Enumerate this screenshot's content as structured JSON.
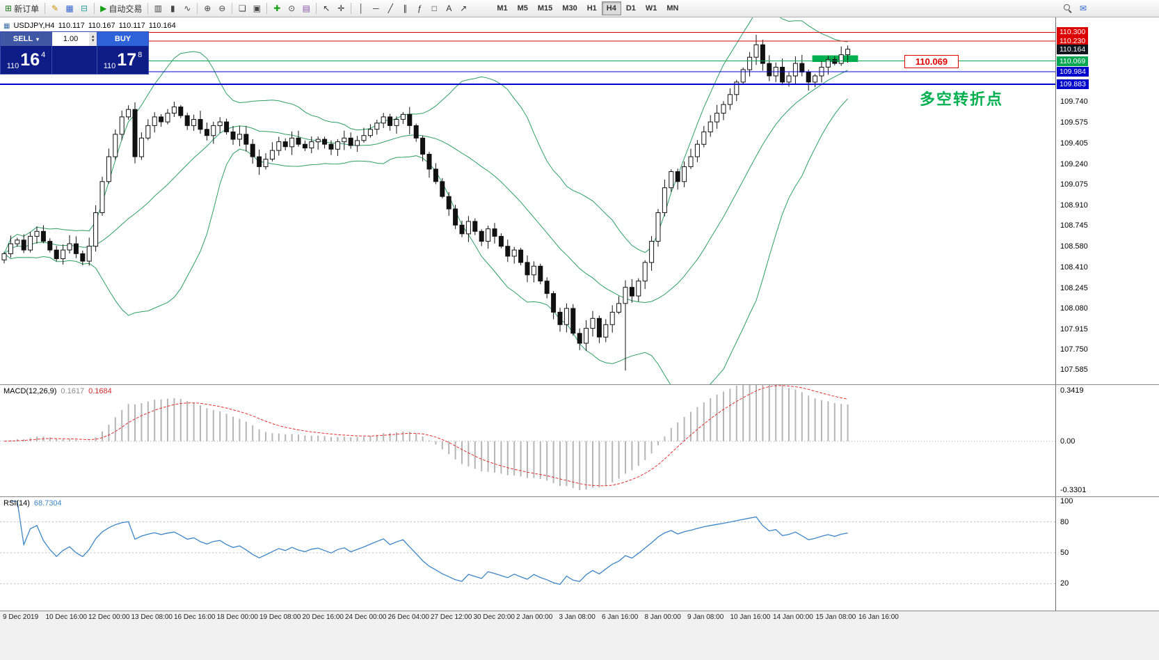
{
  "toolbar": {
    "groups": [
      {
        "items": [
          {
            "name": "new-order",
            "glyph": "⊞",
            "color": "#1f7a1f",
            "label": "新订单"
          }
        ]
      },
      {
        "items": [
          {
            "name": "metaeditor",
            "glyph": "✎",
            "color": "#c79100"
          },
          {
            "name": "market-watch",
            "glyph": "▦",
            "color": "#2f62cf"
          },
          {
            "name": "data-window",
            "glyph": "⊟",
            "color": "#2aa198"
          }
        ]
      },
      {
        "items": [
          {
            "name": "autotrading",
            "glyph": "▶",
            "color": "#18a018",
            "label": "自动交易"
          }
        ]
      },
      {
        "items": [
          {
            "name": "bar-chart",
            "glyph": "▥",
            "color": "#444444"
          },
          {
            "name": "candlestick-chart",
            "glyph": "▮",
            "color": "#444444"
          },
          {
            "name": "line-chart",
            "glyph": "∿",
            "color": "#444444"
          }
        ]
      },
      {
        "items": [
          {
            "name": "zoom-in",
            "glyph": "⊕",
            "color": "#444444"
          },
          {
            "name": "zoom-out",
            "glyph": "⊖",
            "color": "#444444"
          }
        ]
      },
      {
        "items": [
          {
            "name": "tile-windows",
            "glyph": "❏",
            "color": "#444444"
          },
          {
            "name": "cascade-windows",
            "glyph": "▣",
            "color": "#444444"
          }
        ]
      },
      {
        "items": [
          {
            "name": "add-indicator",
            "glyph": "✚",
            "color": "#18a018"
          },
          {
            "name": "periods",
            "glyph": "⊙",
            "color": "#444444"
          },
          {
            "name": "templates",
            "glyph": "▤",
            "color": "#8658a8"
          }
        ]
      },
      {
        "items": [
          {
            "name": "cursor",
            "glyph": "↖",
            "color": "#333333"
          },
          {
            "name": "crosshair",
            "glyph": "✛",
            "color": "#333333"
          }
        ]
      },
      {
        "items": [
          {
            "name": "vertical-line",
            "glyph": "│",
            "color": "#333333"
          },
          {
            "name": "horizontal-line",
            "glyph": "─",
            "color": "#333333"
          },
          {
            "name": "trendline",
            "glyph": "╱",
            "color": "#333333"
          },
          {
            "name": "equidistant-channel",
            "glyph": "∥",
            "color": "#333333"
          },
          {
            "name": "fibonacci",
            "glyph": "ƒ",
            "color": "#333333"
          },
          {
            "name": "shapes",
            "glyph": "□",
            "color": "#333333"
          },
          {
            "name": "text",
            "glyph": "A",
            "color": "#333333"
          },
          {
            "name": "arrow-tools",
            "glyph": "↗",
            "color": "#333333"
          }
        ]
      }
    ],
    "timeframes": [
      {
        "label": "M1"
      },
      {
        "label": "M5"
      },
      {
        "label": "M15"
      },
      {
        "label": "M30"
      },
      {
        "label": "H1"
      },
      {
        "label": "H4",
        "active": true
      },
      {
        "label": "D1"
      },
      {
        "label": "W1"
      },
      {
        "label": "MN"
      }
    ],
    "right_icons": [
      {
        "name": "search",
        "css": "magnifier"
      },
      {
        "name": "chat",
        "glyph": "✉",
        "color": "#2f62cf"
      }
    ]
  },
  "chart": {
    "symbol_info": {
      "symbol": "USDJPY,H4",
      "open": "110.117",
      "high": "110.167",
      "low": "110.117",
      "close": "110.164"
    },
    "trade_widget": {
      "sell_label": "SELL",
      "buy_label": "BUY",
      "lot": "1.00",
      "price_prefix": "110",
      "sell_big": "16",
      "sell_sup": "4",
      "buy_big": "17",
      "buy_sup": "8"
    },
    "annotations": {
      "turning_point": "多空转折点",
      "price_tag": "110.069"
    },
    "current_price_badge": "110.164"
  },
  "chart_data": {
    "type": "candlestick",
    "symbol": "USDJPY",
    "timeframe": "H4",
    "price_range": {
      "max": 110.42,
      "min": 107.47
    },
    "price_axis_ticks": [
      "109.740",
      "109.575",
      "109.405",
      "109.240",
      "109.075",
      "108.910",
      "108.745",
      "108.580",
      "108.410",
      "108.245",
      "108.080",
      "107.915",
      "107.750",
      "107.585"
    ],
    "closes": [
      108.52,
      108.6,
      108.63,
      108.55,
      108.66,
      108.7,
      108.62,
      108.55,
      108.48,
      108.55,
      108.6,
      108.52,
      108.46,
      108.58,
      108.85,
      109.1,
      109.3,
      109.48,
      109.62,
      109.68,
      109.3,
      109.45,
      109.55,
      109.62,
      109.58,
      109.65,
      109.7,
      109.63,
      109.55,
      109.6,
      109.52,
      109.47,
      109.55,
      109.58,
      109.5,
      109.44,
      109.48,
      109.4,
      109.3,
      109.22,
      109.28,
      109.35,
      109.42,
      109.38,
      109.45,
      109.4,
      109.37,
      109.42,
      109.44,
      109.4,
      109.36,
      109.42,
      109.45,
      109.39,
      109.43,
      109.47,
      109.52,
      109.57,
      109.62,
      109.55,
      109.6,
      109.64,
      109.55,
      109.45,
      109.32,
      109.2,
      109.1,
      108.98,
      108.88,
      108.75,
      108.68,
      108.78,
      108.7,
      108.62,
      108.72,
      108.66,
      108.58,
      108.5,
      108.55,
      108.45,
      108.35,
      108.42,
      108.3,
      108.2,
      108.05,
      107.95,
      108.08,
      107.88,
      107.8,
      107.92,
      108.0,
      107.85,
      107.95,
      108.05,
      108.12,
      108.25,
      108.18,
      108.3,
      108.45,
      108.62,
      108.85,
      109.05,
      109.18,
      109.1,
      109.22,
      109.3,
      109.4,
      109.5,
      109.58,
      109.65,
      109.72,
      109.8,
      109.9,
      110.0,
      110.1,
      110.2,
      110.05,
      109.95,
      110.02,
      109.9,
      109.95,
      110.05,
      109.98,
      109.9,
      109.95,
      110.02,
      110.08,
      110.05,
      110.12,
      110.164
    ],
    "candle_overrides": [
      {
        "index": 95,
        "low": 107.58
      },
      {
        "index": 115,
        "high": 110.28
      }
    ],
    "hlines": [
      {
        "price": 110.3,
        "label": "110.300",
        "color": "#dd0000",
        "width": 1
      },
      {
        "price": 110.23,
        "label": "110.230",
        "color": "#dd0000",
        "width": 1
      },
      {
        "price": 110.069,
        "label": "110.069",
        "color": "#00a651",
        "width": 1
      },
      {
        "price": 109.984,
        "label": "109.984",
        "color": "#0000cc",
        "width": 1
      },
      {
        "price": 109.883,
        "label": "109.883",
        "color": "#0000cc",
        "width": 2
      }
    ],
    "highlight_rect": {
      "x_start_index": 124,
      "x_end_index": 131,
      "price_top": 110.115,
      "price_bottom": 110.062,
      "color": "#00b050"
    },
    "bollinger": {
      "period": 20,
      "deviation": 2,
      "color": "#2e9e63"
    },
    "macd": {
      "name": "MACD(12,26,9)",
      "value1": "0.1617",
      "value2": "0.1684",
      "scale_top": "0.3419",
      "scale_zero": "0.00",
      "scale_bottom": "-0.3301",
      "range": {
        "max": 0.3419,
        "min": -0.3301
      }
    },
    "rsi": {
      "name": "RSI(14)",
      "value": "68.7304",
      "period": 14,
      "scale_labels": [
        100,
        80,
        50,
        20
      ],
      "levels": [
        80,
        50,
        20
      ]
    },
    "time_labels": [
      "9 Dec 2019",
      "10 Dec 16:00",
      "12 Dec 00:00",
      "13 Dec 08:00",
      "16 Dec 16:00",
      "18 Dec 00:00",
      "19 Dec 08:00",
      "20 Dec 16:00",
      "24 Dec 00:00",
      "26 Dec 04:00",
      "27 Dec 12:00",
      "30 Dec 20:00",
      "2 Jan 00:00",
      "3 Jan 08:00",
      "6 Jan 16:00",
      "8 Jan 00:00",
      "9 Jan 08:00",
      "10 Jan 16:00",
      "14 Jan 00:00",
      "15 Jan 08:00",
      "16 Jan 16:00"
    ]
  }
}
